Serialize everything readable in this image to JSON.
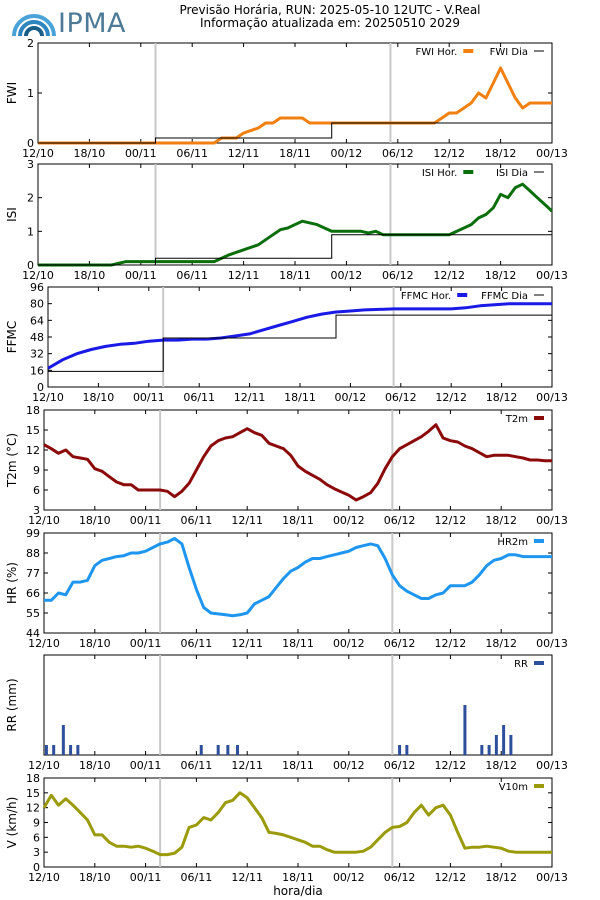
{
  "header": {
    "brand": "IPMA",
    "title": "Previsão Horária, RUN: 2025-05-10 12UTC - V.Real",
    "subtitle": "Informação atualizada em: 20250510 2029"
  },
  "colors": {
    "fwi": "#f08010",
    "isi": "#0a6e0a",
    "ffmc": "#1a1ae6",
    "t2m": "#8b0a0a",
    "hr2m": "#1e96f0",
    "rr": "#2d4f9c",
    "v10m": "#9a9a0a",
    "day": "#000000",
    "midnight": "#c8c8c8"
  },
  "chart_data": [
    {
      "type": "line",
      "ylabel": "FWI",
      "x_ticks": [
        "12/10",
        "18/10",
        "00/11",
        "06/11",
        "12/11",
        "18/11",
        "00/12",
        "06/12",
        "12/12",
        "18/12",
        "00/13"
      ],
      "ylim": [
        0,
        2
      ],
      "y_ticks": [
        "0",
        "1",
        "2"
      ],
      "series": [
        {
          "name": "FWI Hor.",
          "kind": "line",
          "x": [
            0,
            6,
            9,
            12,
            18,
            21,
            24,
            27,
            30,
            33,
            36,
            39,
            42,
            45,
            51,
            54,
            57,
            60,
            63,
            66,
            69,
            72,
            75,
            78,
            81,
            84,
            90,
            93,
            96,
            99,
            102,
            105,
            108,
            111,
            114,
            117,
            120,
            123,
            126,
            132,
            135,
            138,
            141,
            144,
            147,
            150,
            153,
            156,
            159,
            162,
            165,
            168,
            171,
            174,
            177,
            180,
            183,
            186,
            189,
            192,
            195,
            198,
            201,
            204,
            207,
            210
          ],
          "y": [
            0,
            0,
            0,
            0,
            0,
            0,
            0,
            0,
            0,
            0,
            0,
            0,
            0,
            0,
            0,
            0,
            0,
            0,
            0,
            0,
            0,
            0,
            0.1,
            0.1,
            0.1,
            0.2,
            0.3,
            0.4,
            0.4,
            0.5,
            0.5,
            0.5,
            0.5,
            0.4,
            0.4,
            0.4,
            0.4,
            0.4,
            0.4,
            0.4,
            0.4,
            0.4,
            0.4,
            0.4,
            0.4,
            0.4,
            0.4,
            0.4,
            0.4,
            0.4,
            0.5,
            0.6,
            0.6,
            0.7,
            0.8,
            1.0,
            0.9,
            1.2,
            1.5,
            1.2,
            0.9,
            0.7,
            0.8,
            0.8,
            0.8,
            0.8
          ]
        },
        {
          "name": "FWI Dia",
          "kind": "step",
          "x": [
            0,
            24,
            48,
            72,
            96,
            120,
            144,
            168,
            192,
            210
          ],
          "y": [
            0,
            0,
            0.1,
            0.1,
            0.1,
            0.4,
            0.4,
            0.4,
            0.4,
            0.4
          ]
        }
      ]
    },
    {
      "type": "line",
      "ylabel": "ISI",
      "x_ticks": [
        "12/10",
        "18/10",
        "00/11",
        "06/11",
        "12/11",
        "18/11",
        "00/12",
        "06/12",
        "12/12",
        "18/12",
        "00/13"
      ],
      "ylim": [
        0,
        3
      ],
      "y_ticks": [
        "0",
        "1",
        "2",
        "3"
      ],
      "series": [
        {
          "name": "ISI Hor.",
          "kind": "line",
          "x": [
            0,
            6,
            12,
            18,
            24,
            30,
            36,
            42,
            48,
            54,
            60,
            66,
            72,
            78,
            84,
            90,
            96,
            99,
            102,
            108,
            114,
            120,
            126,
            132,
            135,
            138,
            141,
            144,
            150,
            156,
            162,
            168,
            174,
            177,
            180,
            183,
            186,
            189,
            192,
            195,
            198,
            201,
            204,
            207,
            210
          ],
          "y": [
            0,
            0,
            0,
            0,
            0,
            0,
            0.1,
            0.1,
            0.1,
            0.1,
            0.1,
            0.1,
            0.1,
            0.3,
            0.45,
            0.6,
            0.9,
            1.05,
            1.1,
            1.3,
            1.2,
            1.0,
            1.0,
            1.0,
            0.95,
            1.0,
            0.9,
            0.9,
            0.9,
            0.9,
            0.9,
            0.9,
            1.1,
            1.2,
            1.4,
            1.5,
            1.7,
            2.1,
            2.0,
            2.3,
            2.4,
            2.2,
            2.0,
            1.8,
            1.6
          ]
        },
        {
          "name": "ISI Dia",
          "kind": "step",
          "x": [
            0,
            24,
            48,
            72,
            96,
            120,
            144,
            168,
            192,
            210
          ],
          "y": [
            0,
            0,
            0.2,
            0.2,
            0.2,
            0.9,
            0.9,
            0.9,
            0.9,
            0.9
          ]
        }
      ]
    },
    {
      "type": "line",
      "ylabel": "FFMC",
      "x_ticks": [
        "12/10",
        "18/10",
        "00/11",
        "06/11",
        "12/11",
        "18/11",
        "00/12",
        "06/12",
        "12/12",
        "18/12",
        "00/13"
      ],
      "ylim": [
        0,
        96
      ],
      "y_ticks": [
        "0",
        "16",
        "32",
        "48",
        "64",
        "80",
        "96"
      ],
      "series": [
        {
          "name": "FFMC Hor.",
          "kind": "line",
          "x": [
            0,
            6,
            12,
            18,
            24,
            30,
            36,
            42,
            48,
            54,
            60,
            66,
            72,
            78,
            84,
            90,
            96,
            102,
            108,
            114,
            120,
            126,
            132,
            138,
            144,
            150,
            156,
            162,
            168,
            174,
            180,
            186,
            192,
            198,
            204,
            210
          ],
          "y": [
            18,
            26,
            32,
            36,
            39,
            41,
            42,
            44,
            45,
            45,
            46,
            46,
            47,
            49,
            51,
            55,
            59,
            63,
            67,
            70,
            72,
            73,
            74,
            74.5,
            75,
            75,
            75,
            75,
            75,
            76,
            78,
            79,
            80,
            80,
            80,
            80
          ]
        },
        {
          "name": "FFMC Dia",
          "kind": "step",
          "x": [
            0,
            24,
            48,
            72,
            96,
            120,
            144,
            168,
            192,
            210
          ],
          "y": [
            15,
            15,
            47,
            47,
            47,
            69,
            69,
            69,
            69,
            69
          ]
        }
      ]
    },
    {
      "type": "line",
      "ylabel": "T2m (°C)",
      "x_ticks": [
        "12/10",
        "18/10",
        "00/11",
        "06/11",
        "12/11",
        "18/11",
        "00/12",
        "06/12",
        "12/12",
        "18/12",
        "00/13"
      ],
      "ylim": [
        3,
        18
      ],
      "y_ticks": [
        "3",
        "6",
        "9",
        "12",
        "15",
        "18"
      ],
      "series": [
        {
          "name": "T2m",
          "kind": "line",
          "x": [
            0,
            3,
            6,
            9,
            12,
            15,
            18,
            21,
            24,
            27,
            30,
            33,
            36,
            39,
            42,
            45,
            48,
            51,
            54,
            57,
            60,
            63,
            66,
            69,
            72,
            75,
            78,
            81,
            84,
            87,
            90,
            93,
            96,
            99,
            102,
            105,
            108,
            111,
            114,
            117,
            120,
            123,
            126,
            129,
            132,
            135,
            138,
            141,
            144,
            147,
            150,
            153,
            156,
            159,
            162,
            165,
            168,
            171,
            174,
            177,
            180,
            183,
            186,
            189,
            192,
            195,
            198,
            201,
            204,
            207,
            210
          ],
          "y": [
            12.8,
            12.2,
            11.5,
            12,
            11,
            10.8,
            10.6,
            9.2,
            8.8,
            8,
            7.2,
            6.8,
            6.8,
            6,
            6,
            6,
            6,
            5.8,
            5,
            5.8,
            7,
            9,
            11,
            12.6,
            13.4,
            13.8,
            14,
            14.6,
            15.2,
            14.6,
            14.2,
            13,
            12.6,
            12.2,
            11.2,
            9.6,
            8.8,
            8.2,
            7.6,
            6.8,
            6.2,
            5.7,
            5.2,
            4.5,
            5,
            5.6,
            7,
            9.2,
            11,
            12.2,
            12.8,
            13.4,
            14,
            14.8,
            15.8,
            13.8,
            13.4,
            13.2,
            12.6,
            12.2,
            11.6,
            11,
            11.2,
            11.2,
            11.2,
            11,
            10.8,
            10.5,
            10.5,
            10.4,
            10.4
          ]
        }
      ]
    },
    {
      "type": "line",
      "ylabel": "HR (%)",
      "x_ticks": [
        "12/10",
        "18/10",
        "00/11",
        "06/11",
        "12/11",
        "18/11",
        "00/12",
        "06/12",
        "12/12",
        "18/12",
        "00/13"
      ],
      "ylim": [
        44,
        99
      ],
      "y_ticks": [
        "44",
        "55",
        "66",
        "77",
        "88",
        "99"
      ],
      "series": [
        {
          "name": "HR2m",
          "kind": "line",
          "x": [
            0,
            3,
            6,
            9,
            12,
            15,
            18,
            21,
            24,
            27,
            30,
            33,
            36,
            39,
            42,
            45,
            48,
            51,
            54,
            57,
            60,
            63,
            66,
            69,
            72,
            75,
            78,
            81,
            84,
            87,
            90,
            93,
            96,
            99,
            102,
            105,
            108,
            111,
            114,
            117,
            120,
            123,
            126,
            129,
            132,
            135,
            138,
            141,
            144,
            147,
            150,
            153,
            156,
            159,
            162,
            165,
            168,
            171,
            174,
            177,
            180,
            183,
            186,
            189,
            192,
            195,
            198,
            201,
            204,
            207,
            210
          ],
          "y": [
            62,
            62,
            66,
            65,
            72,
            72,
            73,
            81,
            84,
            85,
            86,
            86.5,
            88,
            88,
            89,
            91,
            93,
            94,
            96,
            93,
            80,
            68,
            58,
            55,
            54.5,
            54,
            53.5,
            54,
            55,
            60,
            62,
            64,
            69,
            74,
            78,
            80,
            83,
            85,
            85,
            86,
            87,
            88,
            89,
            91,
            92,
            93,
            92,
            85,
            76,
            70,
            67,
            65,
            63,
            63,
            65,
            66,
            70,
            70,
            70,
            72,
            76,
            81,
            84,
            85,
            87,
            87,
            86,
            86,
            86,
            86,
            86
          ]
        }
      ]
    },
    {
      "type": "bar",
      "ylabel": "RR (mm)",
      "x_ticks": [
        "12/10",
        "18/10",
        "00/11",
        "06/11",
        "12/11",
        "18/11",
        "00/12",
        "06/12",
        "12/12",
        "18/12",
        "00/13"
      ],
      "ylim": [
        0,
        1
      ],
      "y_ticks": [],
      "series": [
        {
          "name": "RR",
          "kind": "bar",
          "x": [
            1,
            4,
            8,
            11,
            14,
            65,
            72,
            76,
            80,
            147,
            150,
            174,
            181,
            184,
            187,
            190,
            193
          ],
          "y": [
            0.1,
            0.1,
            0.3,
            0.1,
            0.1,
            0.1,
            0.1,
            0.1,
            0.1,
            0.1,
            0.1,
            0.5,
            0.1,
            0.1,
            0.2,
            0.3,
            0.2
          ]
        }
      ]
    },
    {
      "type": "line",
      "ylabel": "V (km/h)",
      "xlabel": "hora/dia",
      "x_ticks": [
        "12/10",
        "18/10",
        "00/11",
        "06/11",
        "12/11",
        "18/11",
        "00/12",
        "06/12",
        "12/12",
        "18/12",
        "00/13"
      ],
      "ylim": [
        0,
        18
      ],
      "y_ticks": [
        "0",
        "3",
        "6",
        "9",
        "12",
        "15",
        "18"
      ],
      "series": [
        {
          "name": "V10m",
          "kind": "line",
          "x": [
            0,
            3,
            6,
            9,
            12,
            15,
            18,
            21,
            24,
            27,
            30,
            33,
            36,
            39,
            42,
            45,
            48,
            51,
            54,
            57,
            60,
            63,
            66,
            69,
            72,
            75,
            78,
            81,
            84,
            87,
            90,
            93,
            96,
            99,
            102,
            105,
            108,
            111,
            114,
            117,
            120,
            123,
            126,
            129,
            132,
            135,
            138,
            141,
            144,
            147,
            150,
            153,
            156,
            159,
            162,
            165,
            168,
            171,
            174,
            177,
            180,
            183,
            186,
            189,
            192,
            195,
            198,
            201,
            204,
            207,
            210
          ],
          "y": [
            12,
            14.5,
            12.5,
            13.8,
            12.5,
            11,
            9.5,
            6.5,
            6.5,
            5,
            4.2,
            4.2,
            4,
            4.2,
            3.8,
            3.2,
            2.5,
            2.5,
            2.8,
            4,
            8,
            8.5,
            10,
            9.5,
            11,
            13,
            13.5,
            15,
            14,
            12,
            10,
            7,
            6.8,
            6.5,
            6,
            5.5,
            5,
            4.2,
            4.2,
            3.5,
            3,
            3,
            3,
            3,
            3.2,
            4,
            5.5,
            7,
            8,
            8.2,
            9,
            11,
            12.5,
            10.5,
            12,
            12.5,
            10.5,
            7,
            3.8,
            4,
            4,
            4.2,
            4,
            3.8,
            3.2,
            3,
            3,
            3,
            3,
            3,
            3
          ]
        }
      ]
    }
  ]
}
